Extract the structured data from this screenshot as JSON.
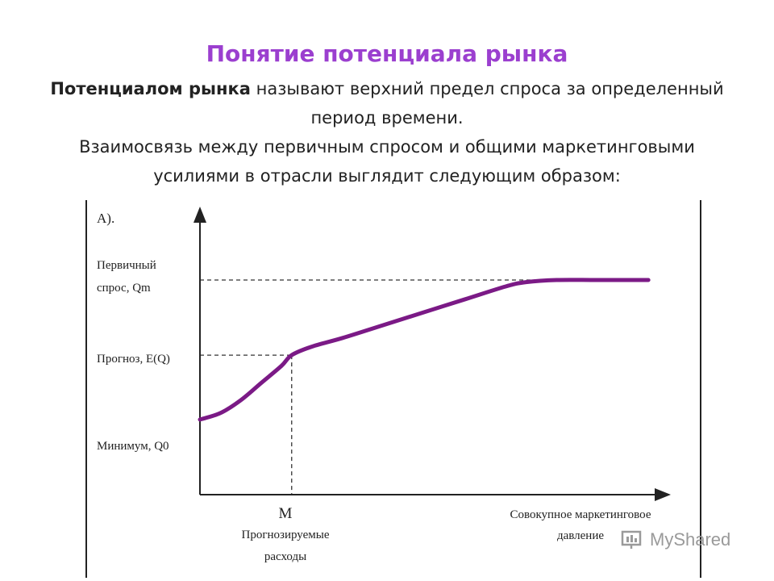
{
  "slide": {
    "title": "Понятие потенциала рынка",
    "definition_term": "Потенциалом рынка",
    "definition_rest": " называют верхний предел спроса за определенный период времени.",
    "relation_text": "Взаимосвязь между первичным спросом и общими маркетинговыми усилиями в отрасли выглядит следующим образом:"
  },
  "chart_data": {
    "type": "line",
    "panel_label": "А).",
    "ylabel_ticks": [
      {
        "line1": "Первичный",
        "line2": "спрос, Qm"
      },
      {
        "line1": "Прогноз, E(Q)",
        "line2": ""
      },
      {
        "line1": "Минимум,  Q0",
        "line2": ""
      }
    ],
    "xlabel_ticks": [
      {
        "main": "М",
        "line1": "Прогнозируемые",
        "line2": "расходы"
      },
      {
        "main": "",
        "line1": "Совокупное маркетинговое",
        "line2": "давление"
      }
    ],
    "levels": {
      "Q0": 0.35,
      "EQ": 0.65,
      "Qm": 1.0
    },
    "M": 0.18,
    "x_max": 1.0,
    "series": [
      {
        "x": [
          0.0,
          0.04,
          0.08,
          0.12,
          0.16,
          0.18,
          0.22,
          0.28,
          0.36,
          0.44,
          0.52,
          0.6,
          0.64,
          0.7,
          0.78,
          0.88
        ],
        "y": [
          0.35,
          0.38,
          0.44,
          0.52,
          0.6,
          0.65,
          0.69,
          0.73,
          0.79,
          0.85,
          0.91,
          0.97,
          0.99,
          1.0,
          1.0,
          1.0
        ]
      }
    ],
    "colors": {
      "curve": "#7b1a86",
      "axis": "#222222",
      "guide": "#333333"
    },
    "grid": false
  },
  "watermark": {
    "text": "MyShared",
    "icon": "presentation-icon"
  }
}
